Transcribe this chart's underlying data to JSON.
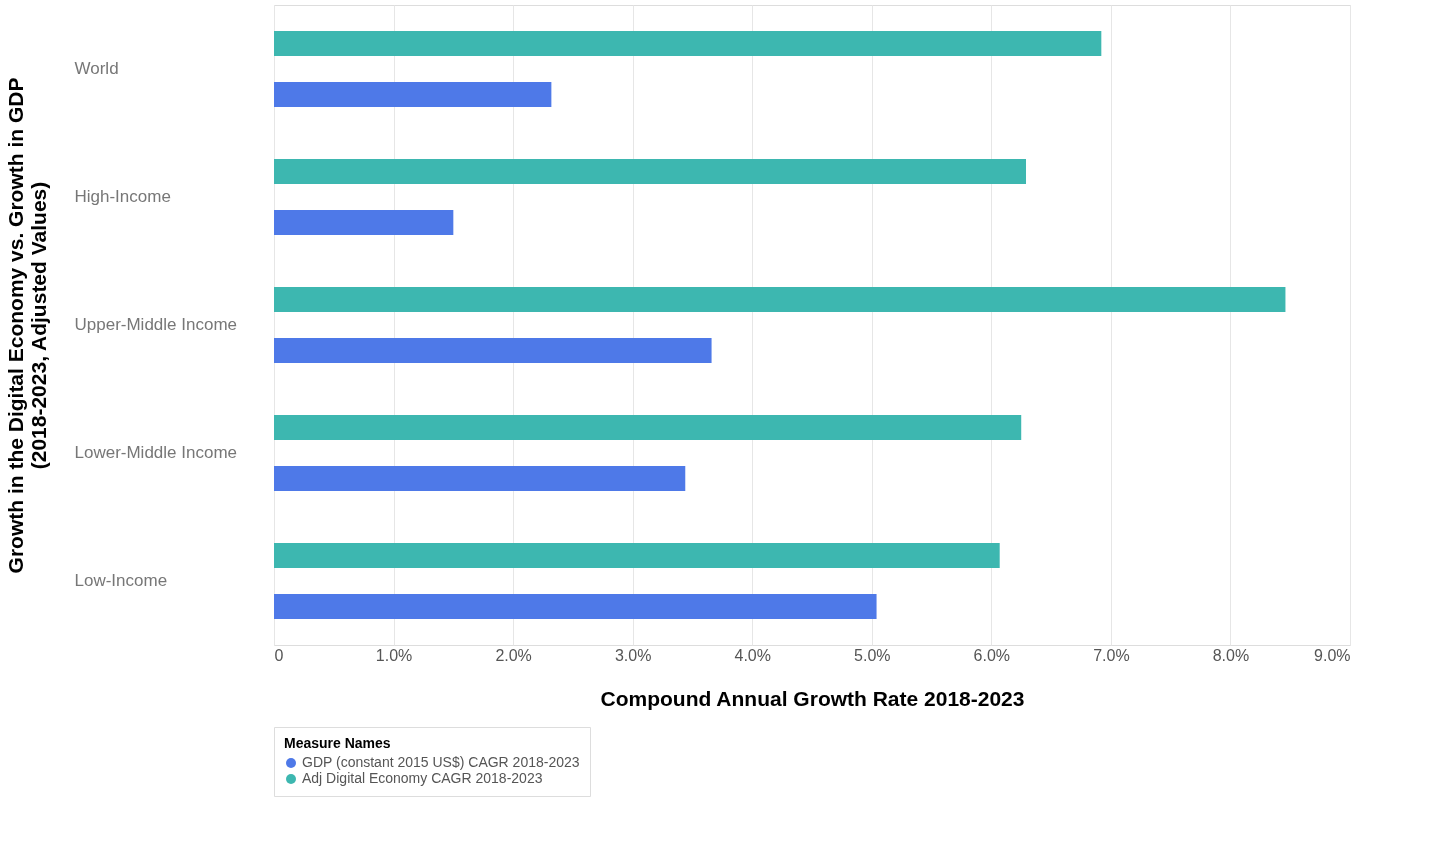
{
  "chart_data": {
    "type": "bar",
    "orientation": "horizontal",
    "xlabel": "Compound Annual Growth Rate 2018-2023",
    "ylabel": "Growth in the Digital Economy vs. Growth in GDP\n(2018-2023, Adjusted Values)",
    "legend_title": "Measure Names",
    "legend": "bottom",
    "grid": "x",
    "categories": [
      "World",
      "High-Income",
      "Upper-Middle Income",
      "Lower-Middle Income",
      "Low-Income"
    ],
    "xlim": [
      0,
      9
    ],
    "xticks": [
      {
        "value": 0,
        "label": "0"
      },
      {
        "value": 1,
        "label": "1.0%"
      },
      {
        "value": 2,
        "label": "2.0%"
      },
      {
        "value": 3,
        "label": "3.0%"
      },
      {
        "value": 4,
        "label": "4.0%"
      },
      {
        "value": 5,
        "label": "5.0%"
      },
      {
        "value": 6,
        "label": "6.0%"
      },
      {
        "value": 7,
        "label": "7.0%"
      },
      {
        "value": 8,
        "label": "8.0%"
      },
      {
        "value": 9,
        "label": "9.0%"
      }
    ],
    "series": [
      {
        "name": "GDP (constant 2015 US$) CAGR 2018-2023",
        "color": "#4e79e8",
        "values": [
          2.32,
          1.5,
          3.66,
          3.44,
          5.04
        ]
      },
      {
        "name": "Adj Digital Economy CAGR 2018-2023",
        "color": "#3db7b0",
        "values": [
          6.92,
          6.29,
          8.46,
          6.25,
          6.07
        ]
      }
    ]
  }
}
